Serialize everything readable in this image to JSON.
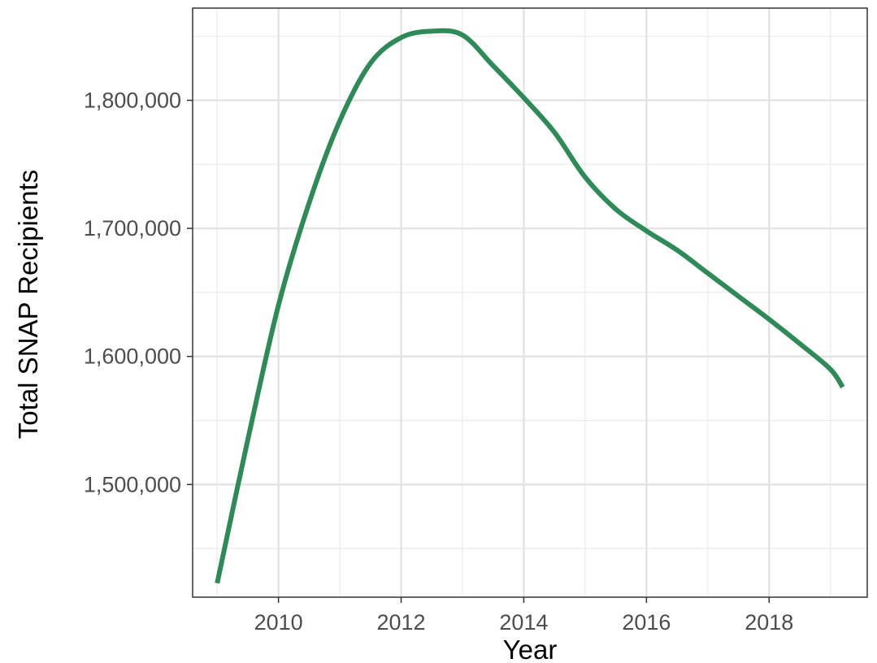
{
  "chart_data": {
    "type": "line",
    "title": "",
    "xlabel": "Year",
    "ylabel": "Total SNAP Recipients",
    "xlim": [
      2008.6,
      2019.6
    ],
    "ylim": [
      1412000,
      1872000
    ],
    "x_ticks": [
      2010,
      2012,
      2014,
      2016,
      2018
    ],
    "x_tick_labels": [
      "2010",
      "2012",
      "2014",
      "2016",
      "2018"
    ],
    "x_minor_ticks": [
      2009,
      2011,
      2013,
      2015,
      2017,
      2019
    ],
    "y_ticks": [
      1500000,
      1600000,
      1700000,
      1800000
    ],
    "y_tick_labels": [
      "1,500,000",
      "1,600,000",
      "1,700,000",
      "1,800,000"
    ],
    "y_minor_ticks": [
      1450000,
      1550000,
      1650000,
      1750000,
      1850000
    ],
    "grid": true,
    "series": [
      {
        "color": "#2e8b57",
        "x": [
          2009.0,
          2009.5,
          2010.0,
          2010.5,
          2011.0,
          2011.5,
          2012.0,
          2012.5,
          2013.0,
          2013.5,
          2014.0,
          2014.5,
          2015.0,
          2015.5,
          2016.0,
          2016.5,
          2017.0,
          2017.5,
          2018.0,
          2018.5,
          2019.0,
          2019.2
        ],
        "y": [
          1423000,
          1535000,
          1640000,
          1720000,
          1784000,
          1829000,
          1849000,
          1854000,
          1851000,
          1827000,
          1802000,
          1775000,
          1740000,
          1715000,
          1698000,
          1683000,
          1665000,
          1647000,
          1629000,
          1610000,
          1590000,
          1576000
        ]
      }
    ]
  }
}
